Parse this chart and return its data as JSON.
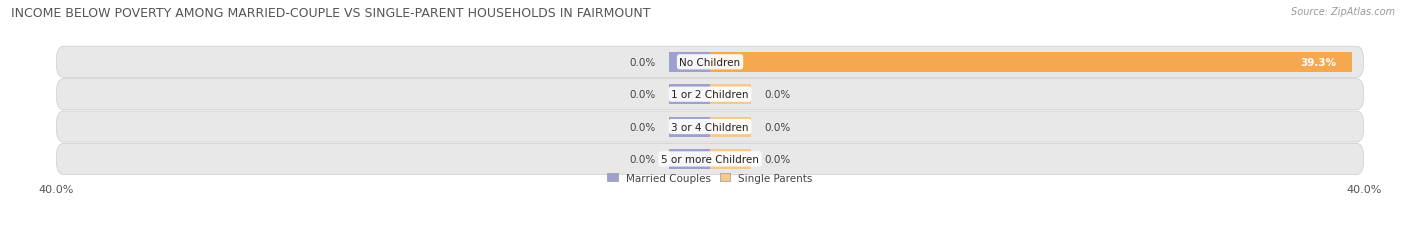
{
  "title": "INCOME BELOW POVERTY AMONG MARRIED-COUPLE VS SINGLE-PARENT HOUSEHOLDS IN FAIRMOUNT",
  "source": "Source: ZipAtlas.com",
  "categories": [
    "No Children",
    "1 or 2 Children",
    "3 or 4 Children",
    "5 or more Children"
  ],
  "married_values": [
    0.0,
    0.0,
    0.0,
    0.0
  ],
  "single_values": [
    39.3,
    0.0,
    0.0,
    0.0
  ],
  "axis_min": -40.0,
  "axis_max": 40.0,
  "married_color": "#a0a0d0",
  "single_color": "#f5a84e",
  "single_color_stub": "#f5c98e",
  "bg_row_color": "#e8e8e8",
  "bg_row_color_alt": "#f0f0f0",
  "bar_height": 0.62,
  "title_fontsize": 9.0,
  "label_fontsize": 7.5,
  "category_fontsize": 7.5,
  "legend_fontsize": 7.5,
  "axis_label_fontsize": 8.0,
  "stub_size": 2.5
}
